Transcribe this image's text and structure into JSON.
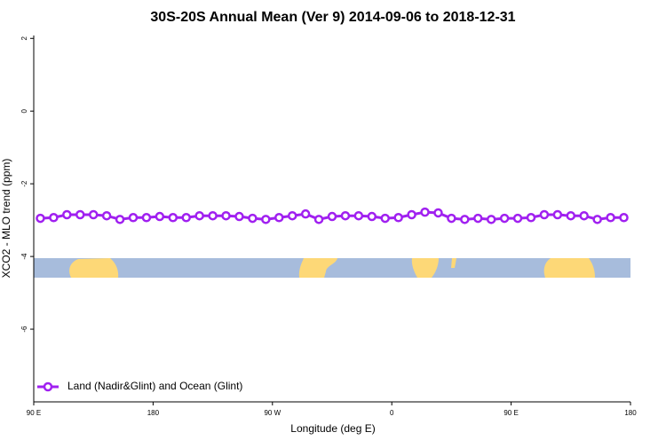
{
  "chart_data": {
    "type": "line",
    "title": "30S-20S Annual Mean (Ver 9)   2014-09-06 to 2018-12-31",
    "x_label": "Longitude (deg E)",
    "y_label": "XCO2 - MLO trend (ppm)",
    "xlim": [
      90,
      540
    ],
    "xticks": [
      {
        "value": 90,
        "label": "90 E"
      },
      {
        "value": 180,
        "label": "180"
      },
      {
        "value": 270,
        "label": "90 W"
      },
      {
        "value": 360,
        "label": "0"
      },
      {
        "value": 450,
        "label": "90 E"
      },
      {
        "value": 540,
        "label": "180"
      }
    ],
    "ylim": [
      -8,
      2.08
    ],
    "yticks": [
      -6,
      -4,
      -2,
      0,
      2
    ],
    "legend": "bottom-left",
    "x": [
      95,
      105,
      115,
      125,
      135,
      145,
      155,
      165,
      175,
      185,
      195,
      205,
      215,
      225,
      235,
      245,
      255,
      265,
      275,
      285,
      295,
      305,
      315,
      325,
      335,
      345,
      355,
      365,
      375,
      385,
      395,
      405,
      415,
      425,
      435,
      445,
      455,
      465,
      475,
      485,
      495,
      505,
      515,
      525,
      535
    ],
    "series": [
      {
        "name": "Land (Nadir&Glint) and Ocean (Glint)",
        "color": "#a020f0",
        "values": [
          -2.95,
          -2.93,
          -2.85,
          -2.85,
          -2.85,
          -2.88,
          -2.98,
          -2.93,
          -2.93,
          -2.9,
          -2.93,
          -2.93,
          -2.88,
          -2.88,
          -2.88,
          -2.9,
          -2.95,
          -2.98,
          -2.93,
          -2.88,
          -2.83,
          -2.98,
          -2.9,
          -2.88,
          -2.88,
          -2.9,
          -2.95,
          -2.93,
          -2.85,
          -2.78,
          -2.8,
          -2.95,
          -2.98,
          -2.95,
          -2.98,
          -2.95,
          -2.95,
          -2.93,
          -2.85,
          -2.85,
          -2.88,
          -2.88,
          -2.98,
          -2.93,
          -2.93
        ]
      }
    ]
  }
}
